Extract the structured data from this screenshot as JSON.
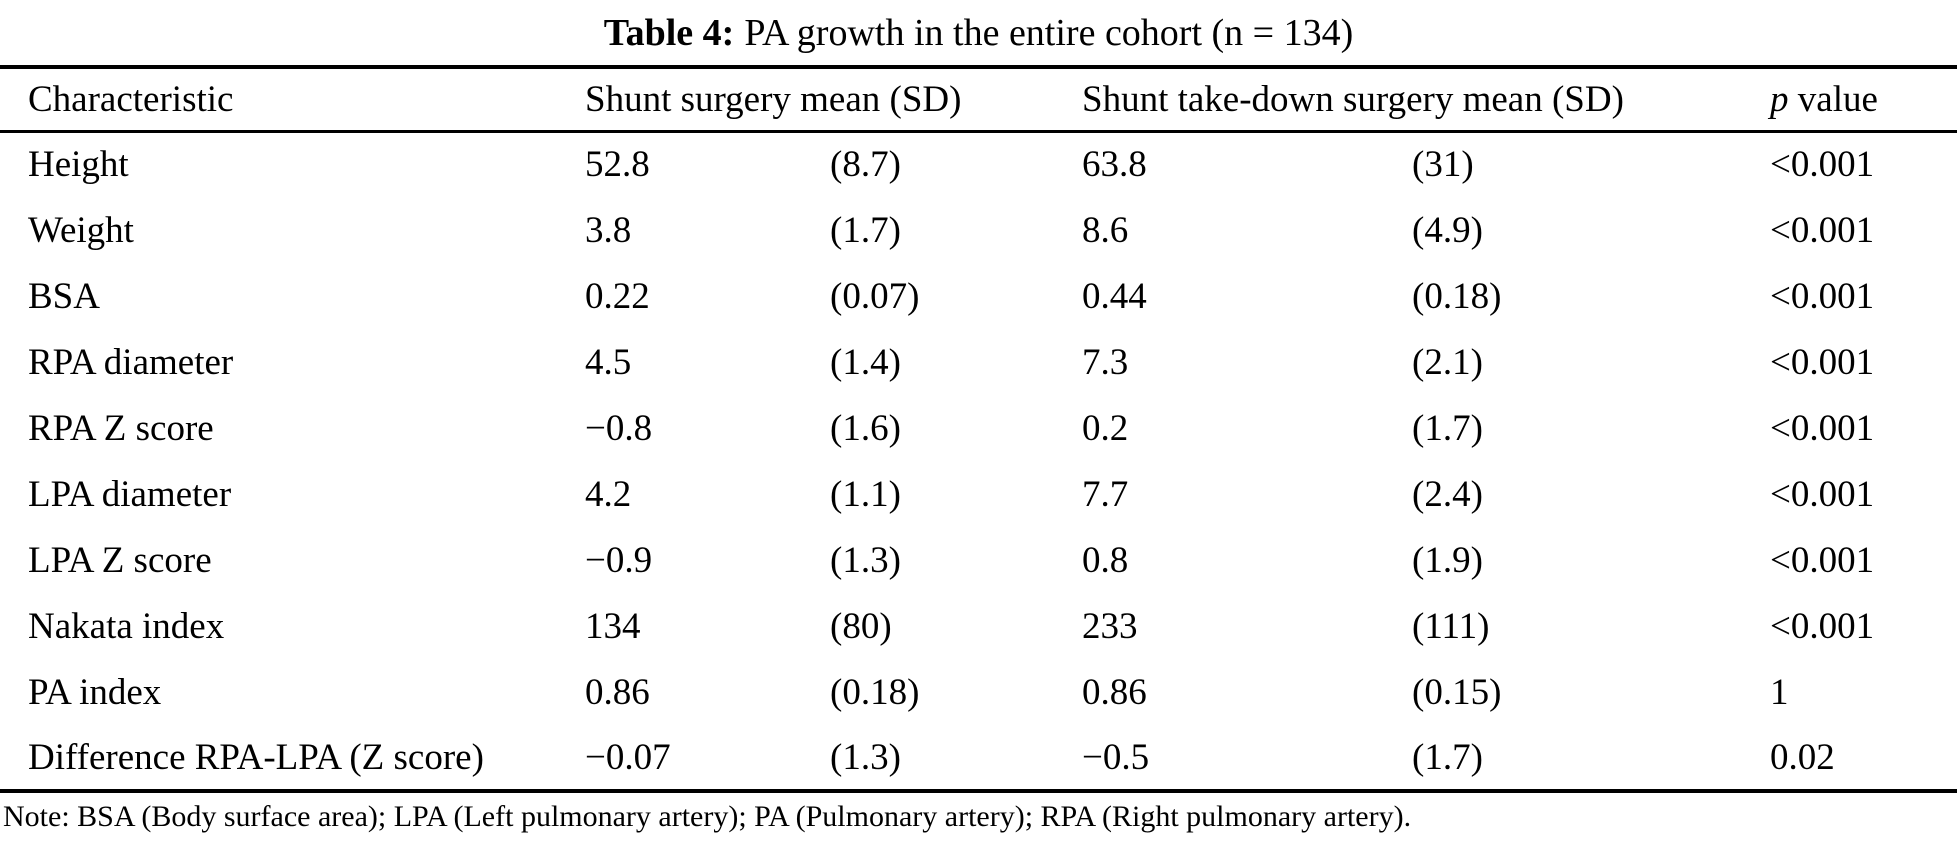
{
  "title": {
    "label": "Table 4:",
    "caption": "PA growth in the entire cohort (n = 134)"
  },
  "table": {
    "headers": {
      "characteristic": "Characteristic",
      "shunt_surgery": "Shunt surgery mean (SD)",
      "takedown_surgery": "Shunt take-down surgery mean (SD)",
      "p_italic": "p",
      "p_rest": " value"
    },
    "rows": [
      {
        "characteristic": "Height",
        "shunt_mean": "52.8",
        "shunt_sd": "(8.7)",
        "takedown_mean": "63.8",
        "takedown_sd": "(31)",
        "p": "<0.001"
      },
      {
        "characteristic": "Weight",
        "shunt_mean": "3.8",
        "shunt_sd": "(1.7)",
        "takedown_mean": "8.6",
        "takedown_sd": "(4.9)",
        "p": "<0.001"
      },
      {
        "characteristic": "BSA",
        "shunt_mean": "0.22",
        "shunt_sd": "(0.07)",
        "takedown_mean": "0.44",
        "takedown_sd": "(0.18)",
        "p": "<0.001"
      },
      {
        "characteristic": "RPA diameter",
        "shunt_mean": "4.5",
        "shunt_sd": "(1.4)",
        "takedown_mean": "7.3",
        "takedown_sd": "(2.1)",
        "p": "<0.001"
      },
      {
        "characteristic": "RPA Z score",
        "shunt_mean": "−0.8",
        "shunt_sd": "(1.6)",
        "takedown_mean": "0.2",
        "takedown_sd": "(1.7)",
        "p": "<0.001"
      },
      {
        "characteristic": "LPA diameter",
        "shunt_mean": "4.2",
        "shunt_sd": "(1.1)",
        "takedown_mean": "7.7",
        "takedown_sd": "(2.4)",
        "p": "<0.001"
      },
      {
        "characteristic": "LPA Z score",
        "shunt_mean": "−0.9",
        "shunt_sd": "(1.3)",
        "takedown_mean": "0.8",
        "takedown_sd": "(1.9)",
        "p": "<0.001"
      },
      {
        "characteristic": "Nakata index",
        "shunt_mean": "134",
        "shunt_sd": "(80)",
        "takedown_mean": "233",
        "takedown_sd": "(111)",
        "p": "<0.001"
      },
      {
        "characteristic": "PA index",
        "shunt_mean": "0.86",
        "shunt_sd": "(0.18)",
        "takedown_mean": "0.86",
        "takedown_sd": "(0.15)",
        "p": "1"
      },
      {
        "characteristic": "Difference RPA-LPA (Z score)",
        "shunt_mean": "−0.07",
        "shunt_sd": "(1.3)",
        "takedown_mean": "−0.5",
        "takedown_sd": "(1.7)",
        "p": "0.02"
      }
    ]
  },
  "note": "Note: BSA (Body surface area); LPA (Left pulmonary artery); PA (Pulmonary artery); RPA (Right pulmonary artery)."
}
